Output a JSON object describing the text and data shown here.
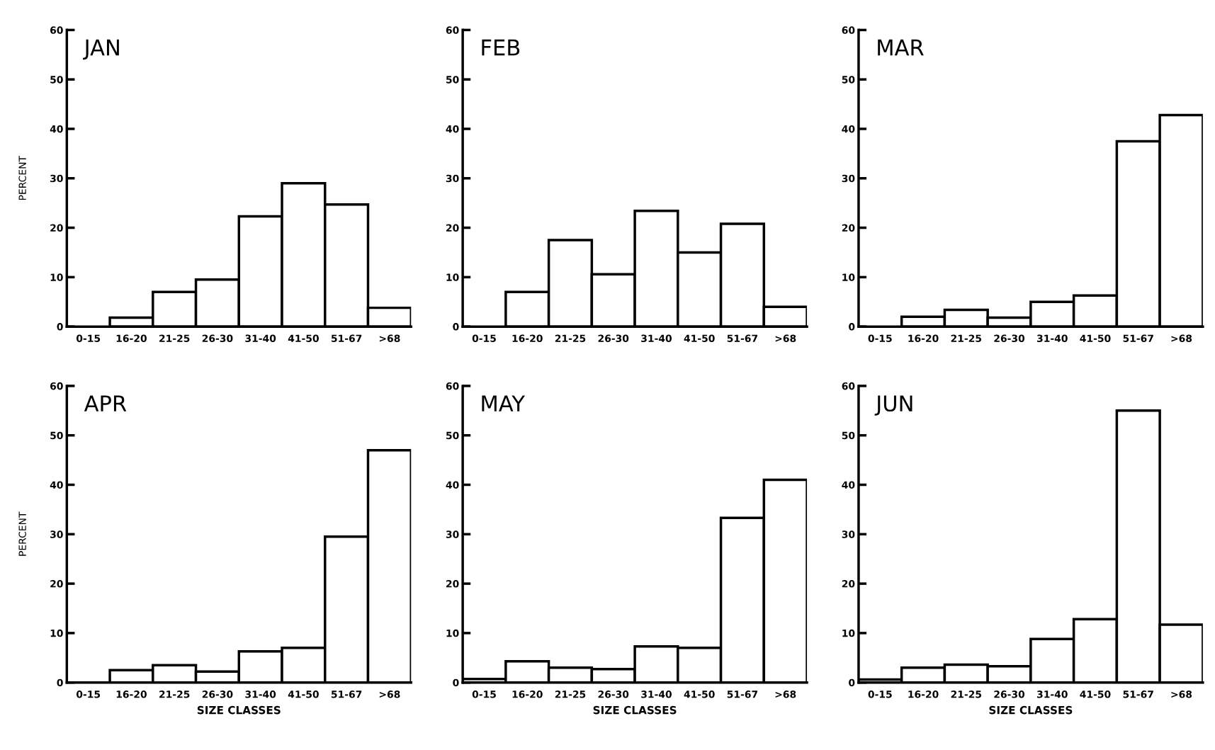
{
  "chart_data": [
    {
      "type": "bar",
      "title": "JAN",
      "ylabel": "PERCENT",
      "categories": [
        "0-15",
        "16-20",
        "21-25",
        "26-30",
        "31-40",
        "41-50",
        "51-67",
        ">68"
      ],
      "values": [
        0,
        1.8,
        7,
        9.5,
        22.3,
        29,
        24.7,
        3.8
      ],
      "color": "#ffffff",
      "ylim": [
        0,
        60
      ],
      "yticks": [
        0,
        10,
        20,
        30,
        40,
        50,
        60
      ],
      "grid": false
    },
    {
      "type": "bar",
      "title": "FEB",
      "categories": [
        "0-15",
        "16-20",
        "21-25",
        "26-30",
        "31-40",
        "41-50",
        "51-67",
        ">68"
      ],
      "values": [
        0,
        7,
        17.5,
        10.6,
        23.4,
        15,
        20.8,
        4
      ],
      "color": "#ffffff",
      "ylim": [
        0,
        60
      ],
      "yticks": [
        0,
        10,
        20,
        30,
        40,
        50,
        60
      ],
      "grid": false
    },
    {
      "type": "bar",
      "title": "MAR",
      "categories": [
        "0-15",
        "16-20",
        "21-25",
        "26-30",
        "31-40",
        "41-50",
        "51-67",
        ">68"
      ],
      "values": [
        0,
        2,
        3.4,
        1.8,
        5,
        6.3,
        37.5,
        42.8
      ],
      "color": "#ffffff",
      "ylim": [
        0,
        60
      ],
      "yticks": [
        0,
        10,
        20,
        30,
        40,
        50,
        60
      ],
      "grid": false
    },
    {
      "type": "bar",
      "title": "APR",
      "ylabel": "PERCENT",
      "xlabel": "SIZE CLASSES",
      "categories": [
        "0-15",
        "16-20",
        "21-25",
        "26-30",
        "31-40",
        "41-50",
        "51-67",
        ">68"
      ],
      "values": [
        0,
        2.5,
        3.5,
        2.2,
        6.3,
        7,
        29.5,
        47
      ],
      "color": "#ffffff",
      "ylim": [
        0,
        60
      ],
      "yticks": [
        0,
        10,
        20,
        30,
        40,
        50,
        60
      ],
      "grid": false
    },
    {
      "type": "bar",
      "title": "MAY",
      "xlabel": "SIZE CLASSES",
      "categories": [
        "0-15",
        "16-20",
        "21-25",
        "26-30",
        "31-40",
        "41-50",
        "51-67",
        ">68"
      ],
      "values": [
        0.7,
        4.3,
        3,
        2.7,
        7.3,
        7,
        33.3,
        41
      ],
      "color": "#ffffff",
      "ylim": [
        0,
        60
      ],
      "yticks": [
        0,
        10,
        20,
        30,
        40,
        50,
        60
      ],
      "grid": false
    },
    {
      "type": "bar",
      "title": "JUN",
      "xlabel": "SIZE CLASSES",
      "categories": [
        "0-15",
        "16-20",
        "21-25",
        "26-30",
        "31-40",
        "41-50",
        "51-67",
        ">68"
      ],
      "values": [
        0.6,
        3,
        3.6,
        3.3,
        8.8,
        12.8,
        55,
        11.7
      ],
      "color": "#ffffff",
      "ylim": [
        0,
        60
      ],
      "yticks": [
        0,
        10,
        20,
        30,
        40,
        50,
        60
      ],
      "grid": false
    }
  ]
}
